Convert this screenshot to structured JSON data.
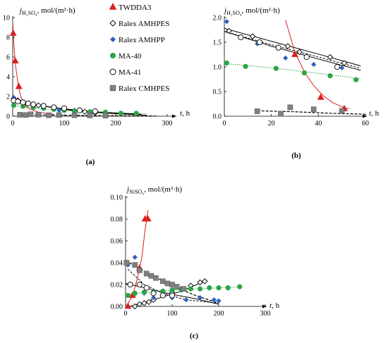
{
  "chart_data": [
    {
      "panel": "(a)",
      "type": "scatter",
      "ylabel": "j_H2SO4, mol/(m²·h)",
      "xlabel": "t, h",
      "xlim": [
        0,
        300
      ],
      "ylim": [
        0,
        10
      ],
      "xticks": [
        0,
        100,
        200,
        300
      ],
      "yticks": [
        0,
        2,
        4,
        6,
        8,
        10
      ],
      "grid": false,
      "legend": "top-right",
      "series": [
        {
          "name": "TWDDA3",
          "marker": "triangle",
          "color": "#d9201e",
          "x": [
            1,
            5,
            12
          ],
          "y": [
            8.4,
            5.6,
            3.0
          ],
          "fit": [
            [
              0,
              9.6
            ],
            [
              2,
              7.5
            ],
            [
              5,
              5.4
            ],
            [
              10,
              3.4
            ],
            [
              15,
              2.1
            ],
            [
              20,
              1.4
            ],
            [
              30,
              0.8
            ],
            [
              50,
              0.4
            ],
            [
              80,
              0.2
            ]
          ]
        },
        {
          "name": "Ralex AMHPES",
          "marker": "diamond-open",
          "color": "#000000",
          "x": [
            2,
            10,
            20,
            30,
            40,
            50,
            60,
            80,
            100,
            120,
            140,
            160,
            180
          ],
          "y": [
            1.75,
            1.6,
            1.4,
            1.3,
            1.2,
            1.1,
            1.0,
            0.85,
            0.7,
            0.55,
            0.45,
            0.35,
            0.3
          ],
          "fit": [
            [
              0,
              1.8
            ],
            [
              40,
              1.25
            ],
            [
              80,
              0.85
            ],
            [
              120,
              0.55
            ],
            [
              180,
              0.3
            ],
            [
              260,
              0.1
            ]
          ]
        },
        {
          "name": "Ralex AMHPP",
          "marker": "diamond",
          "color": "#2e62c0",
          "x": [
            2,
            10,
            20,
            30,
            40,
            60,
            90,
            120,
            150
          ],
          "y": [
            1.9,
            1.5,
            1.35,
            1.2,
            1.1,
            0.8,
            0.6,
            0.5,
            0.4
          ],
          "fit": [
            [
              0,
              1.7
            ],
            [
              50,
              1.1
            ],
            [
              100,
              0.7
            ],
            [
              160,
              0.4
            ],
            [
              250,
              0.15
            ]
          ]
        },
        {
          "name": "MA-40",
          "marker": "circle",
          "color": "#2aa545",
          "x": [
            2,
            20,
            40,
            60,
            80,
            100,
            120,
            150,
            180,
            210,
            240
          ],
          "y": [
            1.1,
            1.0,
            0.9,
            0.8,
            0.7,
            0.6,
            0.5,
            0.45,
            0.4,
            0.3,
            0.3
          ],
          "fit": [
            [
              0,
              1.05
            ],
            [
              60,
              0.75
            ],
            [
              120,
              0.5
            ],
            [
              180,
              0.35
            ],
            [
              260,
              0.25
            ]
          ]
        },
        {
          "name": "MA-41",
          "marker": "circle-open",
          "color": "#000000",
          "x": [
            2,
            10,
            20,
            30,
            40,
            60,
            80,
            100,
            130,
            160
          ],
          "y": [
            1.6,
            1.5,
            1.4,
            1.3,
            1.2,
            1.05,
            0.9,
            0.8,
            0.6,
            0.5
          ],
          "fit": [
            [
              0,
              1.65
            ],
            [
              50,
              1.1
            ],
            [
              100,
              0.75
            ],
            [
              160,
              0.45
            ],
            [
              250,
              0.2
            ]
          ]
        },
        {
          "name": "Ralex CMHPES",
          "marker": "square",
          "color": "#808080",
          "x": [
            14,
            25,
            35,
            50,
            70,
            90,
            120,
            150,
            180
          ],
          "y": [
            0.15,
            0.12,
            0.2,
            0.15,
            0.1,
            0.12,
            0.1,
            0.08,
            0.05
          ],
          "fit": [
            [
              10,
              0.15
            ],
            [
              100,
              0.1
            ],
            [
              200,
              0.05
            ],
            [
              280,
              0.02
            ]
          ]
        }
      ]
    },
    {
      "panel": "(b)",
      "type": "scatter",
      "ylabel": "j_H2SO4, mol/(m²·h)",
      "xlabel": "t, h",
      "xlim": [
        0,
        60
      ],
      "ylim": [
        0,
        2.0
      ],
      "xticks": [
        0,
        20,
        40,
        60
      ],
      "yticks": [
        0.0,
        0.5,
        1.0,
        1.5,
        2.0
      ],
      "grid": false,
      "series": [
        {
          "name": "TWDDA3",
          "marker": "triangle",
          "color": "#d9201e",
          "x": [
            30,
            41,
            51
          ],
          "y": [
            1.25,
            0.38,
            0.15
          ],
          "fit": [
            [
              26,
              1.95
            ],
            [
              30,
              1.3
            ],
            [
              34,
              0.9
            ],
            [
              38,
              0.62
            ],
            [
              42,
              0.42
            ],
            [
              46,
              0.28
            ],
            [
              50,
              0.19
            ],
            [
              53,
              0.15
            ]
          ]
        },
        {
          "name": "Ralex AMHPES",
          "marker": "diamond-open",
          "color": "#000000",
          "x": [
            2,
            12,
            27,
            32,
            45,
            51
          ],
          "y": [
            1.73,
            1.62,
            1.42,
            1.3,
            1.2,
            1.08
          ],
          "fit": [
            [
              0,
              1.78
            ],
            [
              20,
              1.52
            ],
            [
              40,
              1.26
            ],
            [
              58,
              1.02
            ]
          ]
        },
        {
          "name": "Ralex AMHPP",
          "marker": "diamond",
          "color": "#2e62c0",
          "x": [
            1,
            14,
            26,
            38,
            50
          ],
          "y": [
            1.92,
            1.47,
            1.18,
            1.05,
            0.98
          ],
          "fit": [
            [
              0,
              1.72
            ],
            [
              20,
              1.45
            ],
            [
              40,
              1.2
            ],
            [
              58,
              0.97
            ]
          ]
        },
        {
          "name": "MA-40",
          "marker": "circle",
          "color": "#2aa545",
          "x": [
            1,
            9,
            22,
            34,
            45,
            56
          ],
          "y": [
            1.08,
            1.01,
            0.97,
            0.88,
            0.82,
            0.74
          ],
          "fit": [
            [
              0,
              1.07
            ],
            [
              20,
              0.98
            ],
            [
              40,
              0.87
            ],
            [
              58,
              0.76
            ]
          ]
        },
        {
          "name": "MA-41",
          "marker": "circle-open",
          "color": "#000000",
          "x": [
            7,
            15,
            23,
            35,
            48
          ],
          "y": [
            1.6,
            1.5,
            1.39,
            1.2,
            1.0
          ],
          "fit": [
            [
              0,
              1.72
            ],
            [
              20,
              1.42
            ],
            [
              40,
              1.16
            ],
            [
              58,
              0.93
            ]
          ]
        },
        {
          "name": "Ralex CMHPES",
          "marker": "square",
          "color": "#808080",
          "x": [
            14,
            24,
            28,
            38,
            50
          ],
          "y": [
            0.1,
            0.05,
            0.18,
            0.14,
            0.11
          ],
          "fit": [
            [
              14,
              0.11
            ],
            [
              30,
              0.09
            ],
            [
              45,
              0.06
            ],
            [
              60,
              0.04
            ]
          ]
        }
      ]
    },
    {
      "panel": "(c)",
      "type": "scatter",
      "ylabel": "j_NiSO4, mol/(m²·h)",
      "xlabel": "t, h",
      "xlim": [
        0,
        300
      ],
      "ylim": [
        0,
        0.1
      ],
      "xticks": [
        0,
        100,
        200,
        300
      ],
      "yticks": [
        0.0,
        0.02,
        0.04,
        0.06,
        0.08,
        0.1
      ],
      "grid": false,
      "series": [
        {
          "name": "TWDDA3",
          "marker": "triangle",
          "color": "#d9201e",
          "x": [
            5,
            15,
            30,
            42,
            48
          ],
          "y": [
            0.0,
            0.01,
            0.035,
            0.08,
            0.08
          ],
          "fit": [
            [
              2,
              0.0
            ],
            [
              15,
              0.01
            ],
            [
              25,
              0.025
            ],
            [
              35,
              0.045
            ],
            [
              42,
              0.07
            ],
            [
              48,
              0.088
            ]
          ]
        },
        {
          "name": "Ralex AMHPES",
          "marker": "diamond-open",
          "color": "#000000",
          "x": [
            20,
            30,
            40,
            50,
            60,
            80,
            100,
            120,
            140,
            160,
            170
          ],
          "y": [
            0.0,
            0.002,
            0.003,
            0.004,
            0.006,
            0.01,
            0.013,
            0.016,
            0.019,
            0.022,
            0.023
          ],
          "fit": [
            [
              10,
              0.0
            ],
            [
              60,
              0.006
            ],
            [
              120,
              0.014
            ],
            [
              175,
              0.024
            ]
          ]
        },
        {
          "name": "Ralex AMHPP",
          "marker": "diamond",
          "color": "#2e62c0",
          "x": [
            5,
            20,
            40,
            60,
            100,
            130,
            160,
            190,
            200
          ],
          "y": [
            0.038,
            0.045,
            0.012,
            0.008,
            0.008,
            0.006,
            0.008,
            0.006,
            0.005
          ],
          "fit": [
            [
              5,
              0.034
            ],
            [
              40,
              0.02
            ],
            [
              80,
              0.012
            ],
            [
              130,
              0.006
            ],
            [
              200,
              0.003
            ]
          ]
        },
        {
          "name": "MA-40",
          "marker": "circle",
          "color": "#2aa545",
          "x": [
            5,
            20,
            40,
            60,
            80,
            100,
            120,
            140,
            160,
            180,
            200,
            220,
            245
          ],
          "y": [
            0.01,
            0.012,
            0.013,
            0.013,
            0.014,
            0.015,
            0.015,
            0.016,
            0.016,
            0.017,
            0.017,
            0.017,
            0.018
          ],
          "fit": [
            [
              0,
              0.011
            ],
            [
              100,
              0.015
            ],
            [
              250,
              0.018
            ]
          ]
        },
        {
          "name": "MA-41",
          "marker": "circle-open",
          "color": "#000000",
          "x": [
            10,
            30,
            45,
            60,
            80,
            100
          ],
          "y": [
            0.02,
            0.02,
            0.017,
            0.012,
            0.01,
            0.01
          ],
          "fit": [
            [
              0,
              0.021
            ],
            [
              50,
              0.016
            ],
            [
              100,
              0.011
            ],
            [
              150,
              0.007
            ],
            [
              200,
              0.002
            ]
          ]
        },
        {
          "name": "Ralex CMHPES",
          "marker": "square",
          "color": "#808080",
          "x": [
            2,
            20,
            30,
            45,
            55,
            65,
            80,
            90,
            100,
            110,
            125
          ],
          "y": [
            0.04,
            0.038,
            0.033,
            0.03,
            0.028,
            0.026,
            0.023,
            0.021,
            0.02,
            0.018,
            0.016
          ],
          "fit": [
            [
              0,
              0.042
            ],
            [
              50,
              0.03
            ],
            [
              100,
              0.019
            ],
            [
              150,
              0.01
            ],
            [
              200,
              0.003
            ]
          ]
        }
      ]
    }
  ]
}
